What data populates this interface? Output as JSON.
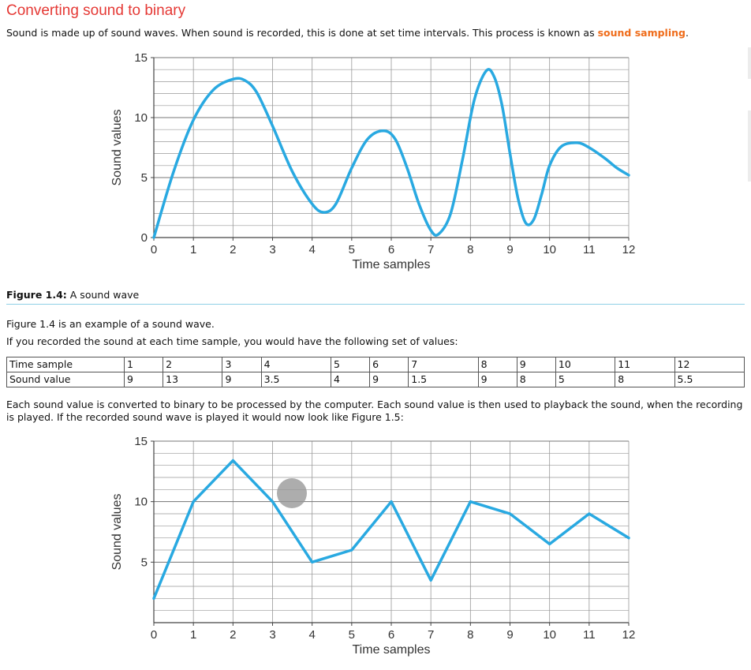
{
  "heading": "Converting sound to binary",
  "intro": {
    "text": "Sound is made up of sound waves. When sound is recorded, this is done at set time intervals. This process is known as ",
    "highlight": "sound sampling",
    "end": "."
  },
  "figure1_caption": {
    "label": "Figure 1.4:",
    "text": " A sound wave"
  },
  "para1": "Figure 1.4 is an example of a sound wave.",
  "para2": "If you recorded the sound at each time sample, you would have the following set of values:",
  "table": {
    "row_headers": [
      "Time sample",
      "Sound value"
    ],
    "time_samples": [
      "1",
      "2",
      "3",
      "4",
      "5",
      "6",
      "7",
      "8",
      "9",
      "10",
      "11",
      "12"
    ],
    "sound_values": [
      "9",
      "13",
      "9",
      "3.5",
      "4",
      "9",
      "1.5",
      "9",
      "8",
      "5",
      "8",
      "5.5"
    ]
  },
  "para3": "Each sound value is converted to binary to be processed by the computer. Each sound value is then used to playback the sound, when the recording is played. If the recorded sound wave is played it would now look like Figure 1.5:",
  "colors": {
    "line": "#29a9e1",
    "grid": "#999999",
    "heading": "#e53935",
    "highlight": "#ef6c1a"
  },
  "chart_data": [
    {
      "type": "line",
      "xlabel": "Time samples",
      "ylabel": "Sound values",
      "x_ticks": [
        0,
        1,
        2,
        3,
        4,
        5,
        6,
        7,
        8,
        9,
        10,
        11,
        12
      ],
      "y_ticks": [
        0,
        5,
        10,
        15
      ],
      "xlim": [
        0,
        12
      ],
      "ylim": [
        0,
        15
      ],
      "grid": true,
      "smooth": true,
      "series": [
        {
          "x": [
            0,
            0.5,
            1,
            1.5,
            2,
            2.3,
            2.6,
            3,
            3.5,
            4,
            4.3,
            4.6,
            5,
            5.4,
            5.8,
            6.1,
            6.4,
            6.7,
            7,
            7.2,
            7.5,
            7.8,
            8.1,
            8.4,
            8.6,
            8.8,
            9,
            9.2,
            9.4,
            9.6,
            9.8,
            10,
            10.3,
            10.7,
            11,
            11.4,
            11.7,
            12
          ],
          "y": [
            0,
            5.5,
            9.8,
            12.3,
            13.2,
            13.1,
            12.1,
            9.3,
            5.5,
            2.8,
            2.1,
            2.8,
            5.8,
            8.2,
            8.9,
            8.2,
            5.8,
            2.8,
            0.6,
            0.3,
            2,
            6.5,
            11.5,
            13.9,
            13.4,
            11,
            7,
            3.3,
            1.2,
            1.5,
            3.6,
            6,
            7.6,
            7.9,
            7.5,
            6.6,
            5.8,
            5.2
          ]
        }
      ]
    },
    {
      "type": "line",
      "xlabel": "Time samples",
      "ylabel": "Sound values",
      "x_ticks": [
        0,
        1,
        2,
        3,
        4,
        5,
        6,
        7,
        8,
        9,
        10,
        11,
        12
      ],
      "y_ticks": [
        5,
        10,
        15
      ],
      "xlim": [
        0,
        12
      ],
      "ylim": [
        0,
        15
      ],
      "grid": true,
      "smooth": false,
      "series": [
        {
          "x": [
            0,
            1,
            2,
            3,
            4,
            5,
            6,
            7,
            8,
            9,
            10,
            11,
            12
          ],
          "y": [
            2,
            10,
            13.4,
            10,
            5,
            6,
            10,
            3.5,
            10,
            9,
            6.5,
            9,
            7
          ]
        }
      ]
    }
  ]
}
